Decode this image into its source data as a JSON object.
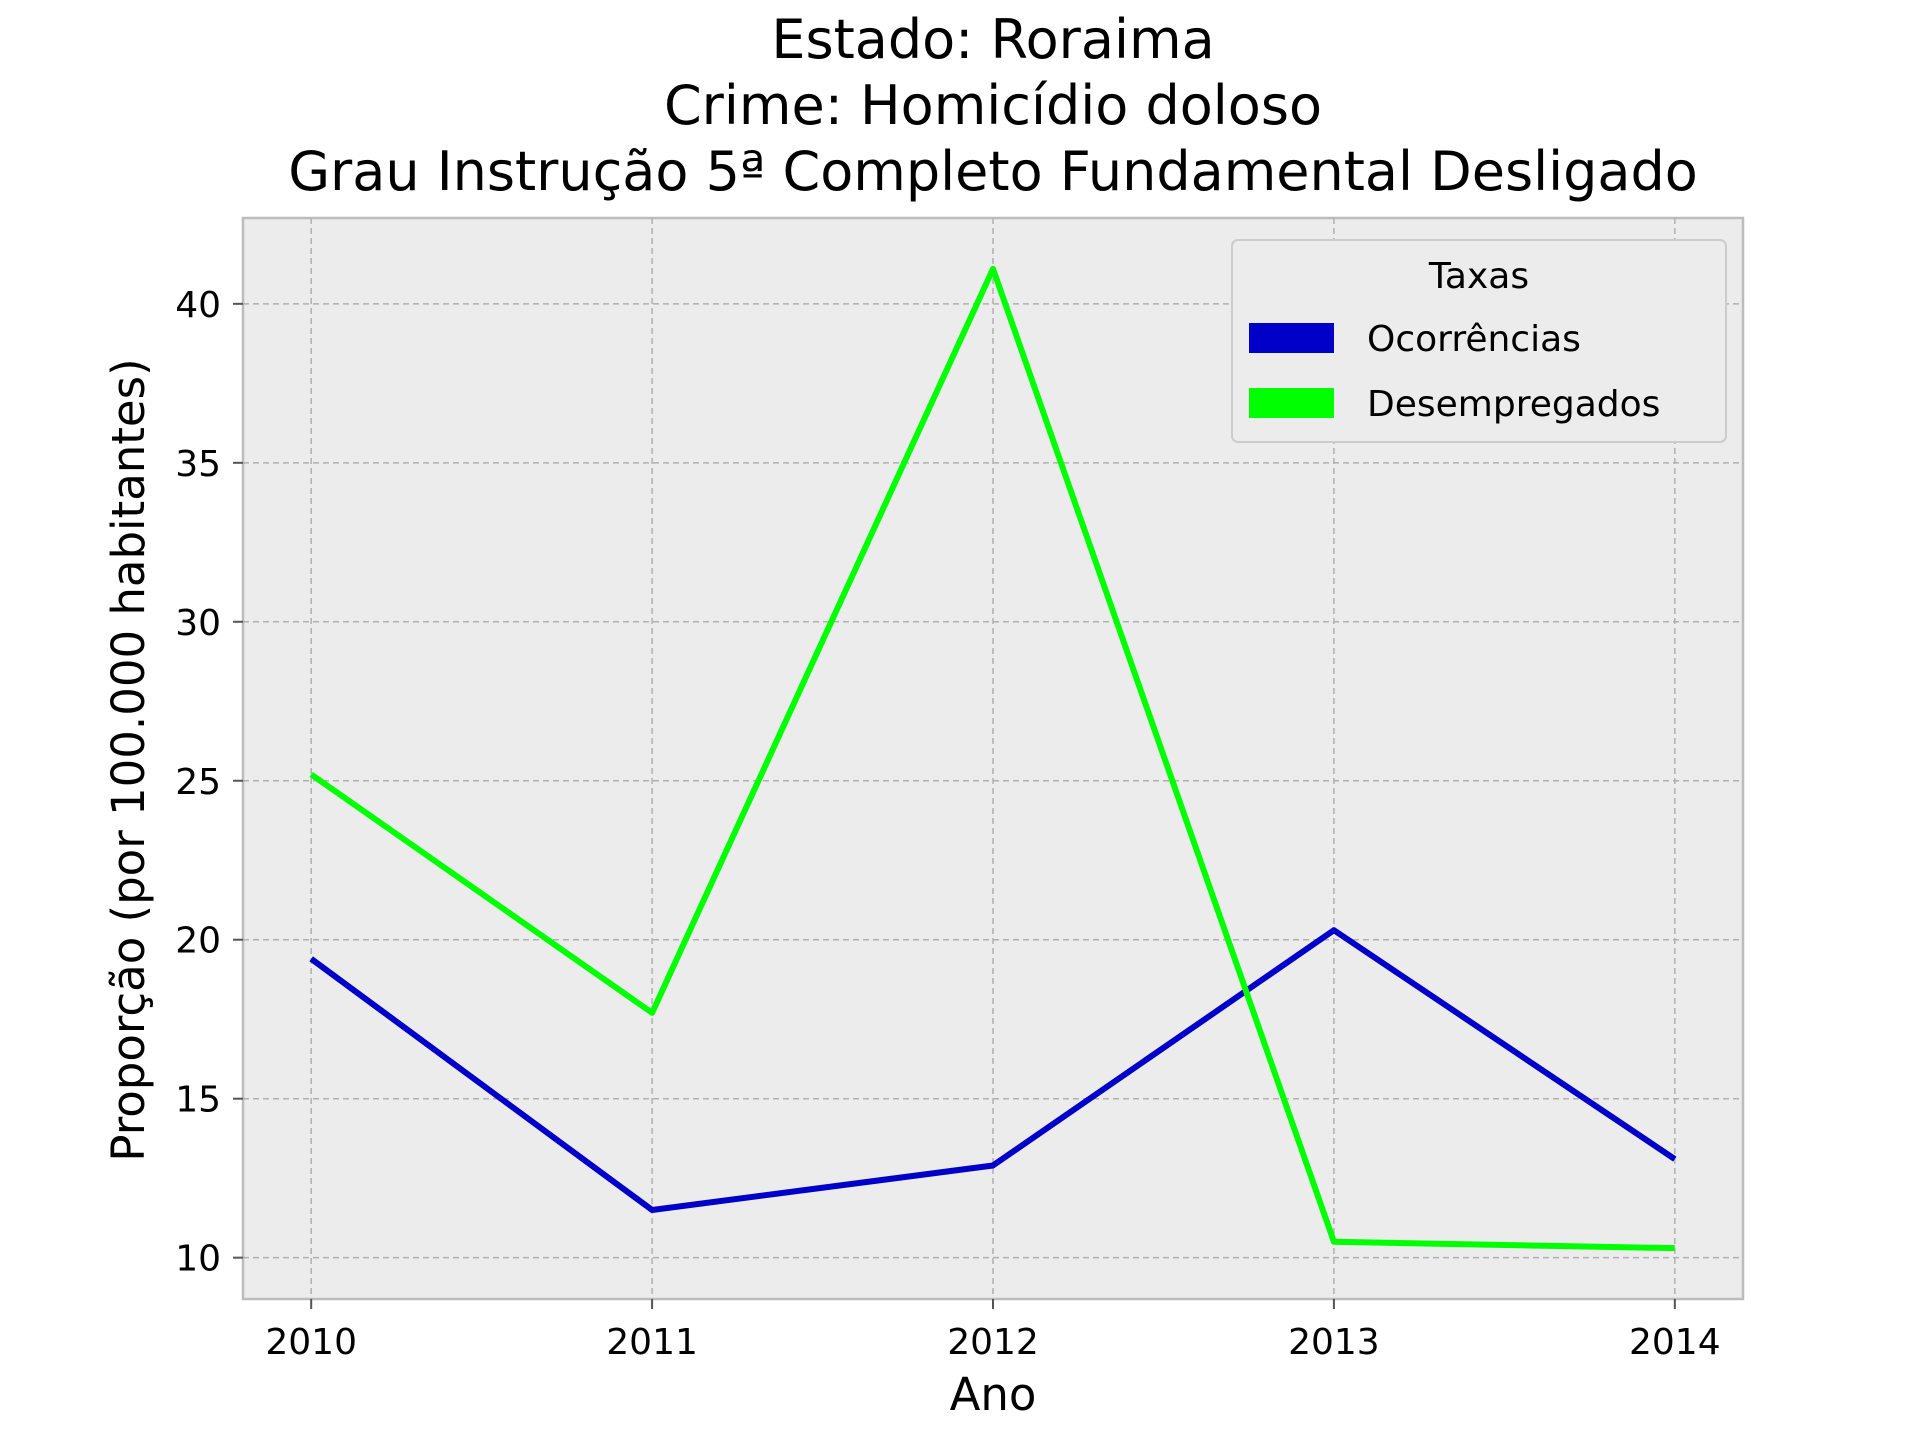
{
  "chart_data": {
    "type": "line",
    "title_lines": [
      "Estado: Roraima",
      "Crime: Homicídio doloso",
      "Grau Instrução  5ª Completo Fundamental   Desligado"
    ],
    "xlabel": "Ano",
    "ylabel": "Proporção (por 100.000 habitantes)",
    "x": [
      2010,
      2011,
      2012,
      2013,
      2014
    ],
    "x_tick_labels": [
      "2010",
      "2011",
      "2012",
      "2013",
      "2014"
    ],
    "y_tick_labels": [
      "10",
      "15",
      "20",
      "25",
      "30",
      "35",
      "40"
    ],
    "y_ticks": [
      10,
      15,
      20,
      25,
      30,
      35,
      40
    ],
    "xlim": [
      2009.8,
      2014.2
    ],
    "ylim": [
      8.7,
      42.7
    ],
    "grid": true,
    "background": "#ececec",
    "legend": {
      "title": "Taxas",
      "placement": "top-right"
    },
    "series": [
      {
        "name": "Ocorrências",
        "color": "#0000c8",
        "values": [
          19.4,
          11.5,
          12.9,
          20.3,
          13.1
        ]
      },
      {
        "name": "Desempregados",
        "color": "#00ff00",
        "values": [
          25.2,
          17.7,
          41.1,
          10.5,
          10.3
        ]
      }
    ]
  }
}
